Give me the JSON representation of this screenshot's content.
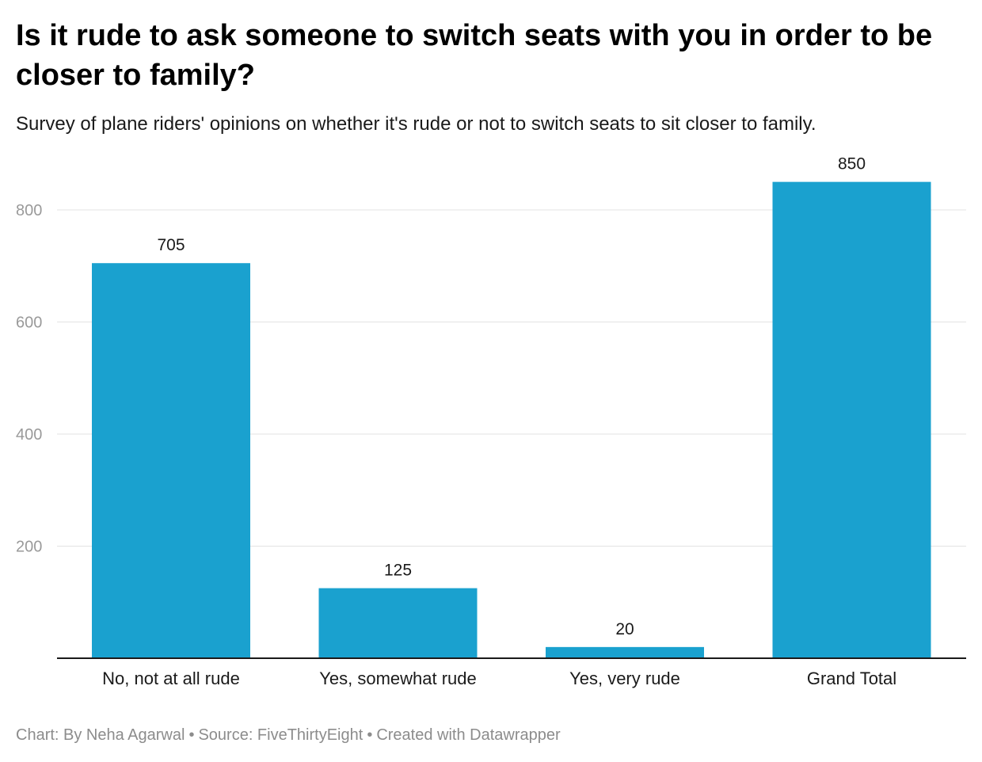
{
  "title": "Is it rude to ask someone to switch seats with you in order to be closer to family?",
  "subtitle": "Survey of plane riders' opinions on whether it's rude or not to switch seats to sit closer to family.",
  "footer": {
    "credit": "Chart: By Neha Agarwal",
    "source": "Source: FiveThirtyEight",
    "tool": "Created with Datawrapper",
    "separator": "•"
  },
  "colors": {
    "bar": "#1aa1cf",
    "grid": "#e3e3e3",
    "axis": "#1a1a1a",
    "tick_label": "#9a9a9a",
    "label": "#1a1a1a"
  },
  "chart_data": {
    "type": "bar",
    "title": "Is it rude to ask someone to switch seats with you in order to be closer to family?",
    "subtitle": "Survey of plane riders' opinions on whether it's rude or not to switch seats to sit closer to family.",
    "categories": [
      "No, not at all rude",
      "Yes, somewhat rude",
      "Yes, very rude",
      "Grand Total"
    ],
    "values": [
      705,
      125,
      20,
      850
    ],
    "xlabel": "",
    "ylabel": "",
    "ylim": [
      0,
      850
    ],
    "yticks": [
      200,
      400,
      600,
      800
    ],
    "grid": true,
    "data_labels": true,
    "legend": "none"
  }
}
